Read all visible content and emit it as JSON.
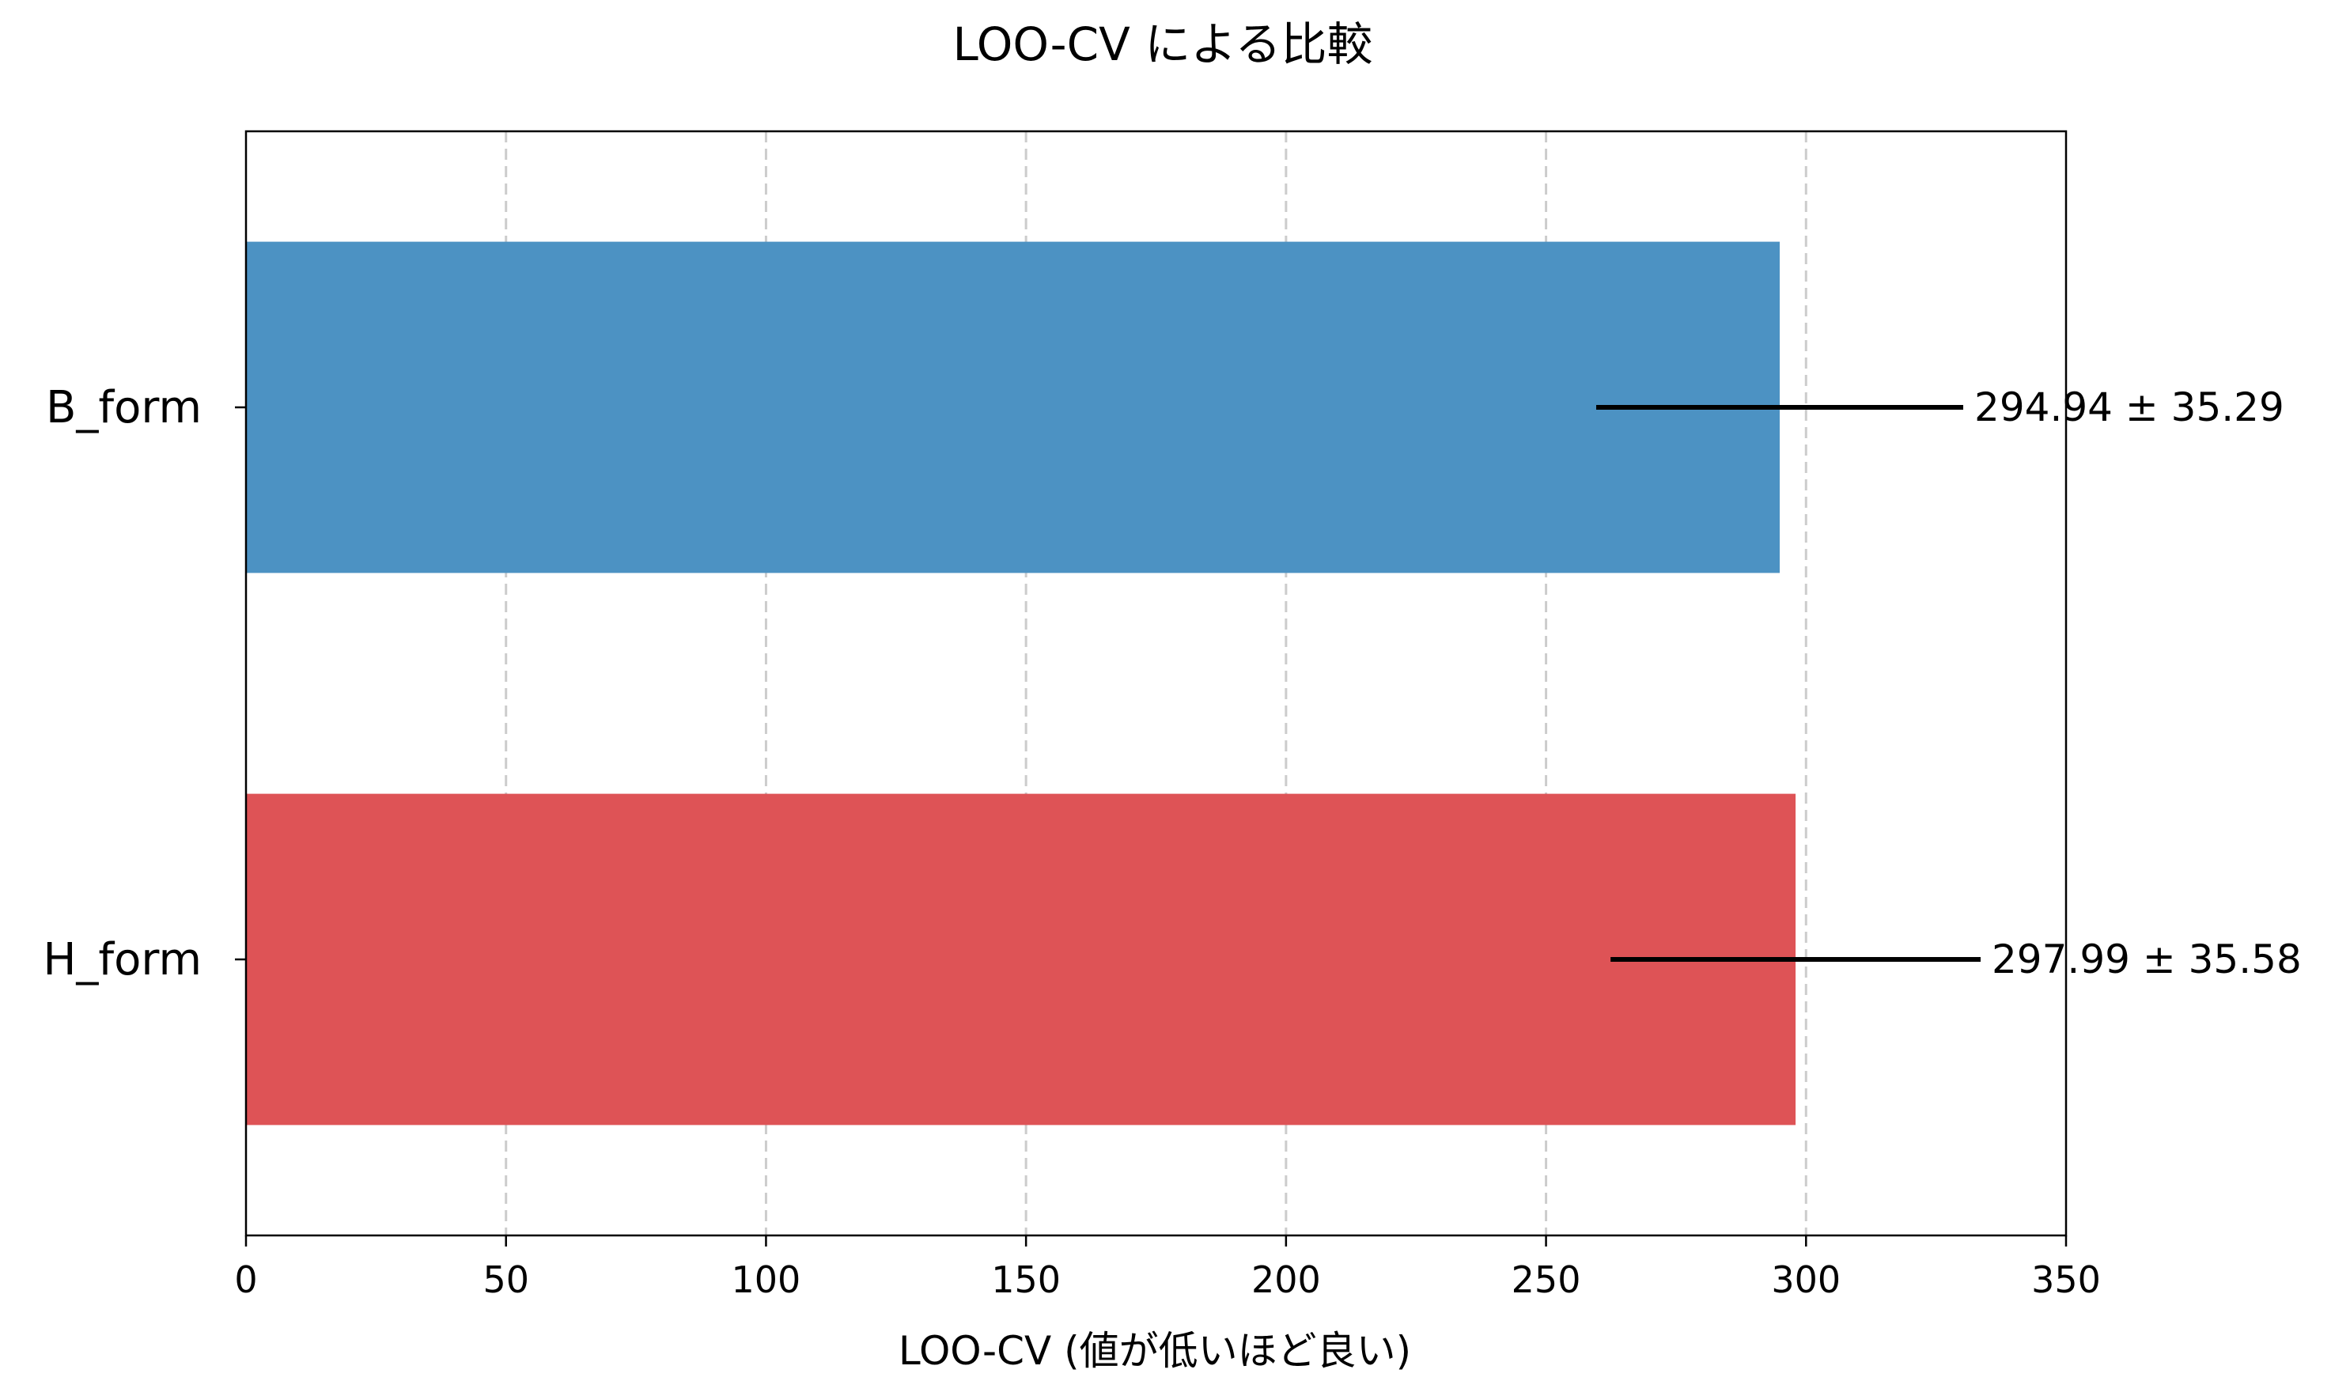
{
  "chart_data": {
    "type": "bar",
    "orientation": "horizontal",
    "title": "LOO-CV による比較",
    "xlabel": "LOO-CV (値が低いほど良い)",
    "ylabel": "",
    "xlim": [
      0,
      350
    ],
    "xticks": [
      0,
      50,
      100,
      150,
      200,
      250,
      300,
      350
    ],
    "grid": "x-dashed",
    "categories": [
      "B_form",
      "H_form"
    ],
    "values": [
      294.94,
      297.99
    ],
    "errors": [
      35.29,
      35.58
    ],
    "data_labels": [
      "294.94 ± 35.29",
      "297.99 ± 35.58"
    ],
    "colors": [
      "#4c92c3",
      "#de5356"
    ],
    "error_color": "#000000",
    "grid_color": "#cccccc"
  }
}
